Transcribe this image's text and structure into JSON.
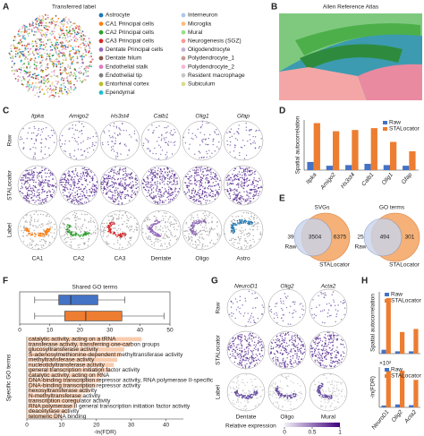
{
  "letters": [
    "A",
    "B",
    "C",
    "D",
    "E",
    "F",
    "G",
    "H"
  ],
  "panel_a": {
    "title": "Transferred label",
    "legend": [
      {
        "label": "Astrocyte",
        "color": "#1f77b4"
      },
      {
        "label": "CA1 Principal cells",
        "color": "#ff7f0e"
      },
      {
        "label": "CA2 Principal cells",
        "color": "#2ca02c"
      },
      {
        "label": "CA3 Principal cells",
        "color": "#d62728"
      },
      {
        "label": "Dentate Principal cells",
        "color": "#9467bd"
      },
      {
        "label": "Dentate hilum",
        "color": "#8c564b"
      },
      {
        "label": "Endothelial stalk",
        "color": "#e377c2"
      },
      {
        "label": "Endothelial tip",
        "color": "#7f7f7f"
      },
      {
        "label": "Entorhinal cortex",
        "color": "#bcbd22"
      },
      {
        "label": "Ependymal",
        "color": "#17becf"
      },
      {
        "label": "Interneuron",
        "color": "#aec7e8"
      },
      {
        "label": "Microglia",
        "color": "#ffbb78"
      },
      {
        "label": "Mural",
        "color": "#98df8a"
      },
      {
        "label": "Neurogenesis (SGZ)",
        "color": "#ff9896"
      },
      {
        "label": "Oligodendrocyte",
        "color": "#c5b0d5"
      },
      {
        "label": "Polydendrocyte_1",
        "color": "#c49c94"
      },
      {
        "label": "Polydendrocyte_2",
        "color": "#f7b6d2"
      },
      {
        "label": "Resident macrophage",
        "color": "#c7c7c7"
      },
      {
        "label": "Subiculum",
        "color": "#dbdb8d"
      }
    ]
  },
  "panel_b": {
    "title": "Allen Reference Atlas"
  },
  "panel_c": {
    "genes": [
      "Itpka",
      "Amigo2",
      "Hs3st4",
      "Calb1",
      "Olig1",
      "Gfap"
    ],
    "rows": [
      "Raw",
      "STALocator",
      "Label"
    ],
    "columns": [
      {
        "label": "CA1",
        "color": "#ff7f0e"
      },
      {
        "label": "CA2",
        "color": "#2ca02c"
      },
      {
        "label": "CA3",
        "color": "#d62728"
      },
      {
        "label": "Dentate",
        "color": "#9467bd"
      },
      {
        "label": "Oligo",
        "color": "#8c6bb1"
      },
      {
        "label": "Astro",
        "color": "#1f77b4"
      }
    ]
  },
  "panel_e": {
    "venns": [
      {
        "title": "SVGs",
        "left": 39,
        "both": 3504,
        "right": 6375,
        "left_label": "Raw",
        "right_label": "STALocator"
      },
      {
        "title": "GO terms",
        "left": 25,
        "both": 494,
        "right": 301,
        "left_label": "Raw",
        "right_label": "STALocator"
      }
    ]
  },
  "panel_g": {
    "genes": [
      "NeuroD1",
      "Olig2",
      "Acta2"
    ],
    "rows": [
      "Raw",
      "STALocator",
      "Label"
    ],
    "columns": [
      "Dentate",
      "Oligo",
      "Mural"
    ],
    "colorbar_label": "Relative expression",
    "colorbar_ticks": [
      0,
      0.5,
      1
    ]
  },
  "chart_data": [
    {
      "type": "bar",
      "ylabel": "Spatial autocorrelation",
      "categories": [
        "Itpka",
        "Amigo2",
        "Hs3st4",
        "Calb1",
        "Olig1",
        "Gfap"
      ],
      "series": [
        {
          "name": "Raw",
          "color": "#4472c4",
          "values": [
            0.13,
            0.07,
            0.08,
            0.1,
            0.08,
            0.07
          ]
        },
        {
          "name": "STALocator",
          "color": "#ed7d31",
          "values": [
            0.75,
            0.62,
            0.64,
            0.67,
            0.45,
            0.3
          ]
        }
      ],
      "ylim": [
        0,
        0.8
      ]
    },
    {
      "type": "bar",
      "ylabel": "Spatial autocorrelation",
      "series": [
        {
          "name": "Raw",
          "color": "#4472c4",
          "values": [
            0.05,
            0.03,
            0.03
          ]
        },
        {
          "name": "STALocator",
          "color": "#ed7d31",
          "values": [
            0.72,
            0.28,
            0.32
          ]
        }
      ],
      "ylim": [
        0,
        0.8
      ]
    },
    {
      "type": "bar",
      "ylabel": "-ln(FDR)",
      "annotation": "×10²",
      "categories": [
        "NeuroD1",
        "Olig2",
        "Acta2"
      ],
      "series": [
        {
          "name": "Raw",
          "color": "#4472c4",
          "values": [
            0.05,
            0.08,
            0.06
          ]
        },
        {
          "name": "STALocator",
          "color": "#ed7d31",
          "values": [
            1.0,
            1.0,
            0.75
          ]
        }
      ],
      "ylim": [
        0,
        1.1
      ]
    },
    {
      "type": "box",
      "title": "Shared GO terms",
      "boxes": [
        {
          "color": "#4472c4",
          "whislo": 5,
          "q1": 13,
          "med": 17,
          "q3": 26,
          "whishi": 35
        },
        {
          "color": "#ed7d31",
          "whislo": 5,
          "q1": 15,
          "med": 22,
          "q3": 34,
          "whishi": 48
        }
      ],
      "xlim": [
        0,
        50
      ],
      "xticks": [
        0,
        10,
        20,
        30,
        40,
        50
      ]
    },
    {
      "type": "barh",
      "ylabel": "Specific GO terms",
      "xlabel": "-ln(FDR)",
      "categories": [
        "catalytic activity, acting on a tRNA",
        "transferase activity, transferring one-carbon groups",
        "glucosyltransferase activity",
        "S-adenosylmethionine-dependent methyltransferase activity",
        "methyltransferase activity",
        "nucleotidyltransferase activity",
        "general transcription initiation factor activity",
        "catalytic activity, acting on RNA",
        "DNA-binding transcription repressor activity, RNA polymerase II-specific",
        "DNA-binding transcription repressor activity",
        "hexosyltransferase activity",
        "N-methyltransferase activity",
        "transcription coregulator activity",
        "RNA polymerase II general transcription initiation factor activity",
        "deacetylase activity",
        "telomeric DNA binding"
      ],
      "values": [
        33,
        30,
        28,
        27,
        26,
        25,
        24,
        22,
        21,
        20,
        18,
        16,
        15,
        14,
        12,
        10
      ],
      "color": "#f8cbad",
      "xlim": [
        0,
        45
      ],
      "xticks": [
        0,
        10,
        20,
        30,
        40
      ]
    }
  ]
}
